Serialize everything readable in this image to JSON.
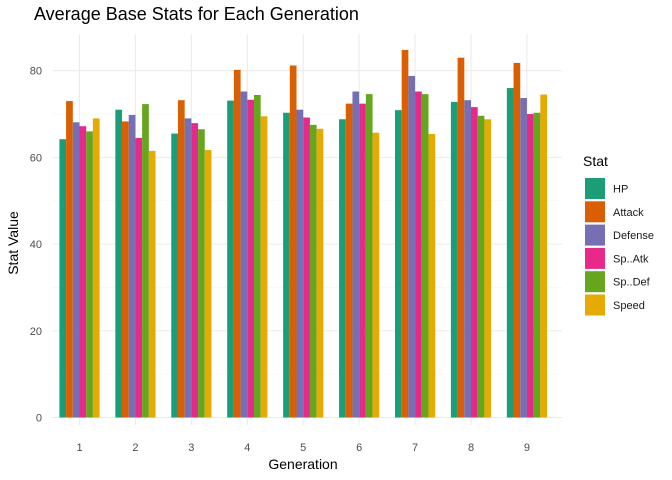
{
  "chart_data": {
    "type": "bar",
    "title": "Average Base Stats for Each Generation",
    "xlabel": "Generation",
    "ylabel": "Stat Value",
    "categories": [
      "1",
      "2",
      "3",
      "4",
      "5",
      "6",
      "7",
      "8",
      "9"
    ],
    "ylim": [
      0,
      88
    ],
    "yticks": [
      0,
      20,
      40,
      60,
      80
    ],
    "grid": true,
    "legend": {
      "title": "Stat",
      "placement": "right"
    },
    "series": [
      {
        "name": "HP",
        "color": "#1B9E77",
        "values": [
          64.2,
          71.0,
          65.5,
          73.1,
          70.3,
          68.8,
          70.9,
          72.8,
          76.0
        ]
      },
      {
        "name": "Attack",
        "color": "#D95F02",
        "values": [
          73.0,
          68.3,
          73.2,
          80.2,
          81.2,
          72.4,
          84.8,
          83.0,
          81.8
        ]
      },
      {
        "name": "Defense",
        "color": "#7570B3",
        "values": [
          68.1,
          69.8,
          69.0,
          75.2,
          71.0,
          75.2,
          78.8,
          73.2,
          73.7
        ]
      },
      {
        "name": "Sp..Atk",
        "color": "#E7298A",
        "values": [
          67.2,
          64.5,
          67.9,
          73.3,
          69.2,
          72.4,
          75.2,
          71.6,
          70.0
        ]
      },
      {
        "name": "Sp..Def",
        "color": "#66A61E",
        "values": [
          66.0,
          72.3,
          66.5,
          74.4,
          67.5,
          74.6,
          74.6,
          69.6,
          70.3
        ]
      },
      {
        "name": "Speed",
        "color": "#E6AB02",
        "values": [
          69.0,
          61.5,
          61.7,
          69.5,
          66.6,
          65.7,
          65.4,
          68.8,
          74.5
        ]
      }
    ]
  }
}
